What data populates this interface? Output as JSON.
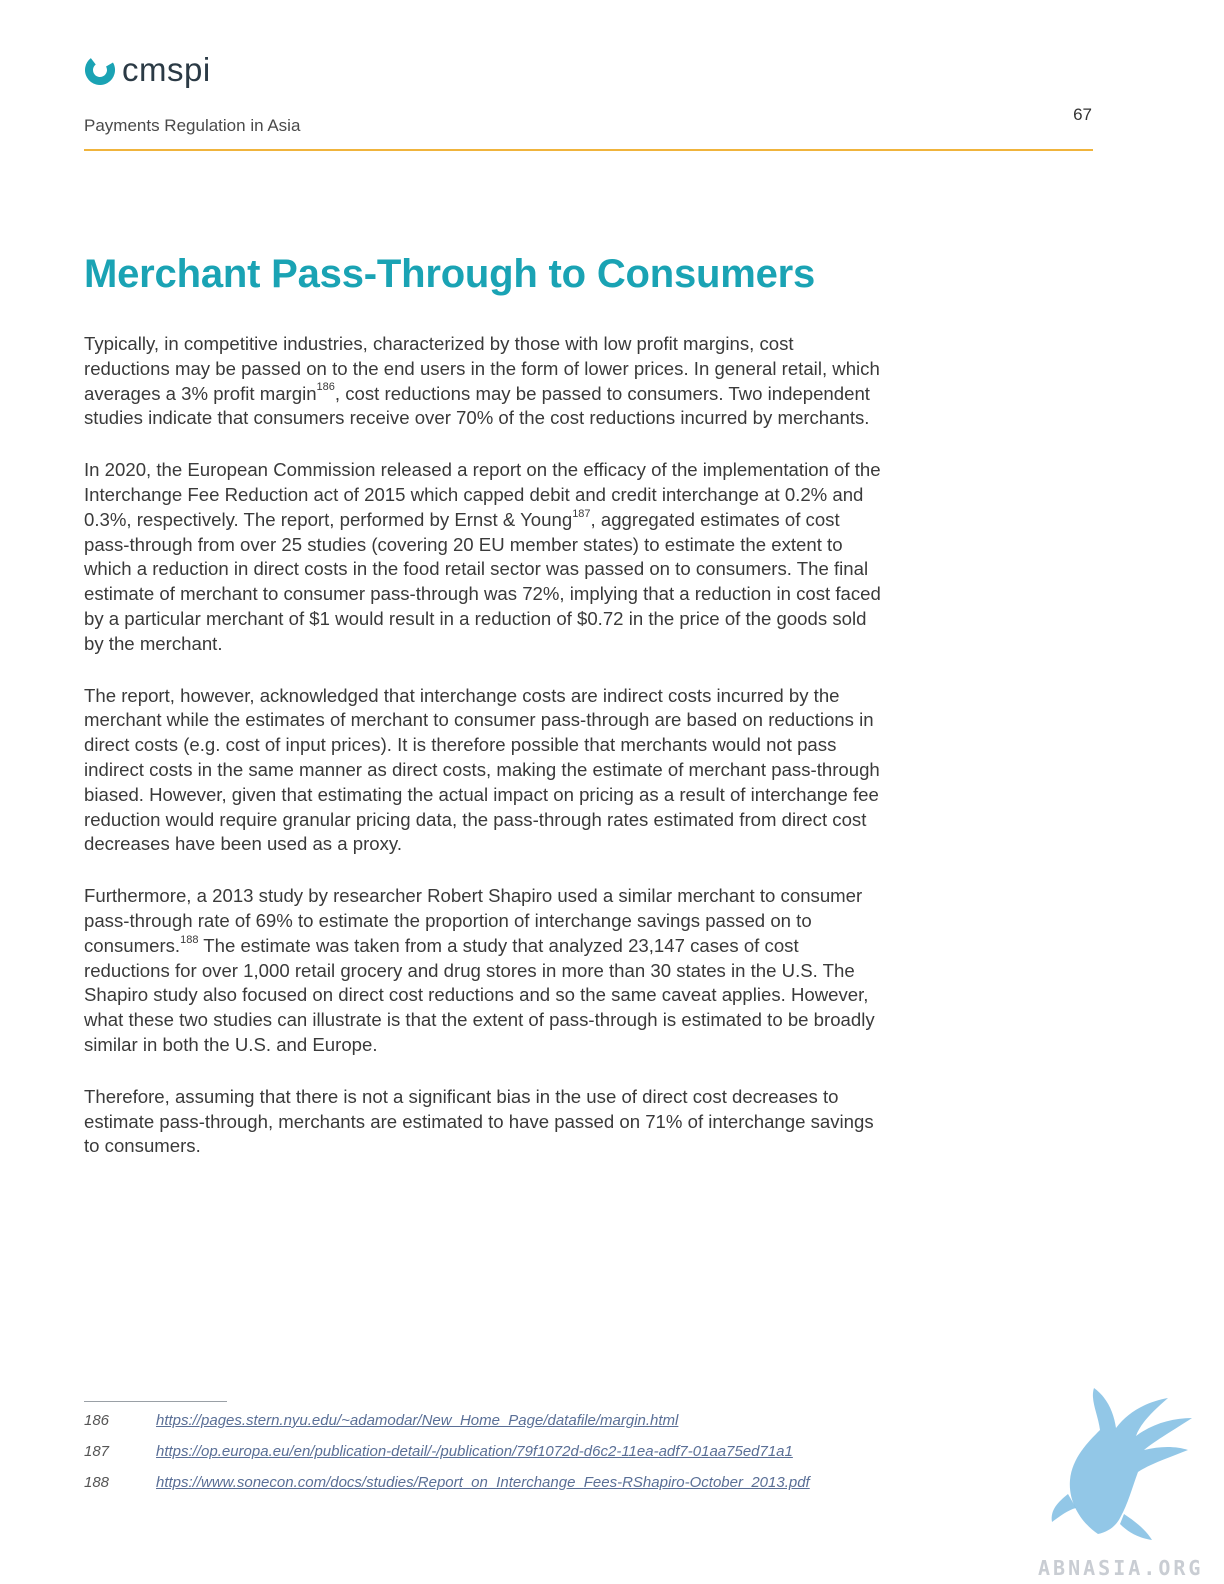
{
  "header": {
    "brand": "cmspi",
    "running_title": "Payments Regulation in Asia",
    "page_number": "67",
    "accent_color": "#f0b43c"
  },
  "section": {
    "title": "Merchant Pass-Through to Consumers",
    "title_color": "#1aa3b4"
  },
  "paragraphs": {
    "p1_a": "Typically, in competitive industries, characterized by those with low profit margins, cost reductions may be passed on to the end users in the form of lower prices. In general retail, which averages a 3% profit margin",
    "p1_ref": "186",
    "p1_b": ", cost reductions may be passed to consumers. Two independent studies indicate that consumers receive over 70% of the cost reductions incurred by merchants.",
    "p2_a": "In 2020, the European Commission released a report on the efficacy of the implementation of the Interchange Fee Reduction act of 2015 which capped debit and credit interchange at 0.2% and 0.3%, respectively. The report, performed by Ernst & Young",
    "p2_ref": "187",
    "p2_b": ", aggregated estimates of cost pass-through from over 25 studies (covering 20 EU member states) to estimate the extent to which a reduction in direct costs in the food retail sector was passed on to consumers. The final estimate of merchant to consumer pass-through was 72%, implying that a reduction in cost faced by a particular merchant of $1 would result in a reduction of $0.72 in the price of the goods sold by the merchant.",
    "p3": "The report, however, acknowledged that interchange costs are indirect costs incurred by the merchant while the estimates of merchant to consumer pass-through are based on reductions in direct costs (e.g. cost of input prices). It is therefore possible that merchants would not pass indirect costs in the same manner as direct costs, making the estimate of merchant pass-through biased. However, given that estimating the actual impact on pricing as a result of interchange fee reduction would require granular pricing data, the pass-through rates estimated from direct cost decreases have been used as a proxy.",
    "p4_a": "Furthermore, a 2013 study by researcher Robert Shapiro used a similar merchant to consumer pass-through rate of 69% to estimate the proportion of interchange savings passed on to consumers.",
    "p4_ref": "188",
    "p4_b": " The estimate was taken from a study that analyzed 23,147 cases of cost reductions for over 1,000 retail grocery and drug stores in more than 30 states in the U.S. The Shapiro study also focused on direct cost reductions and so the same caveat applies. However, what these two studies can illustrate is that the extent of pass-through is estimated to be broadly similar in both the U.S. and Europe.",
    "p5": "Therefore, assuming that there is not a significant bias in the use of direct cost decreases to estimate pass-through, merchants are estimated to have passed on 71% of interchange savings to consumers."
  },
  "footnotes": [
    {
      "number": "186",
      "url": "https://pages.stern.nyu.edu/~adamodar/New_Home_Page/datafile/margin.html"
    },
    {
      "number": "187",
      "url": "https://op.europa.eu/en/publication-detail/-/publication/79f1072d-d6c2-11ea-adf7-01aa75ed71a1"
    },
    {
      "number": "188",
      "url": "https://www.sonecon.com/docs/studies/Report_on_Interchange_Fees-RShapiro-October_2013.pdf"
    }
  ],
  "watermark": {
    "text": "ABNASIA.ORG",
    "icon": "griffin-icon"
  }
}
